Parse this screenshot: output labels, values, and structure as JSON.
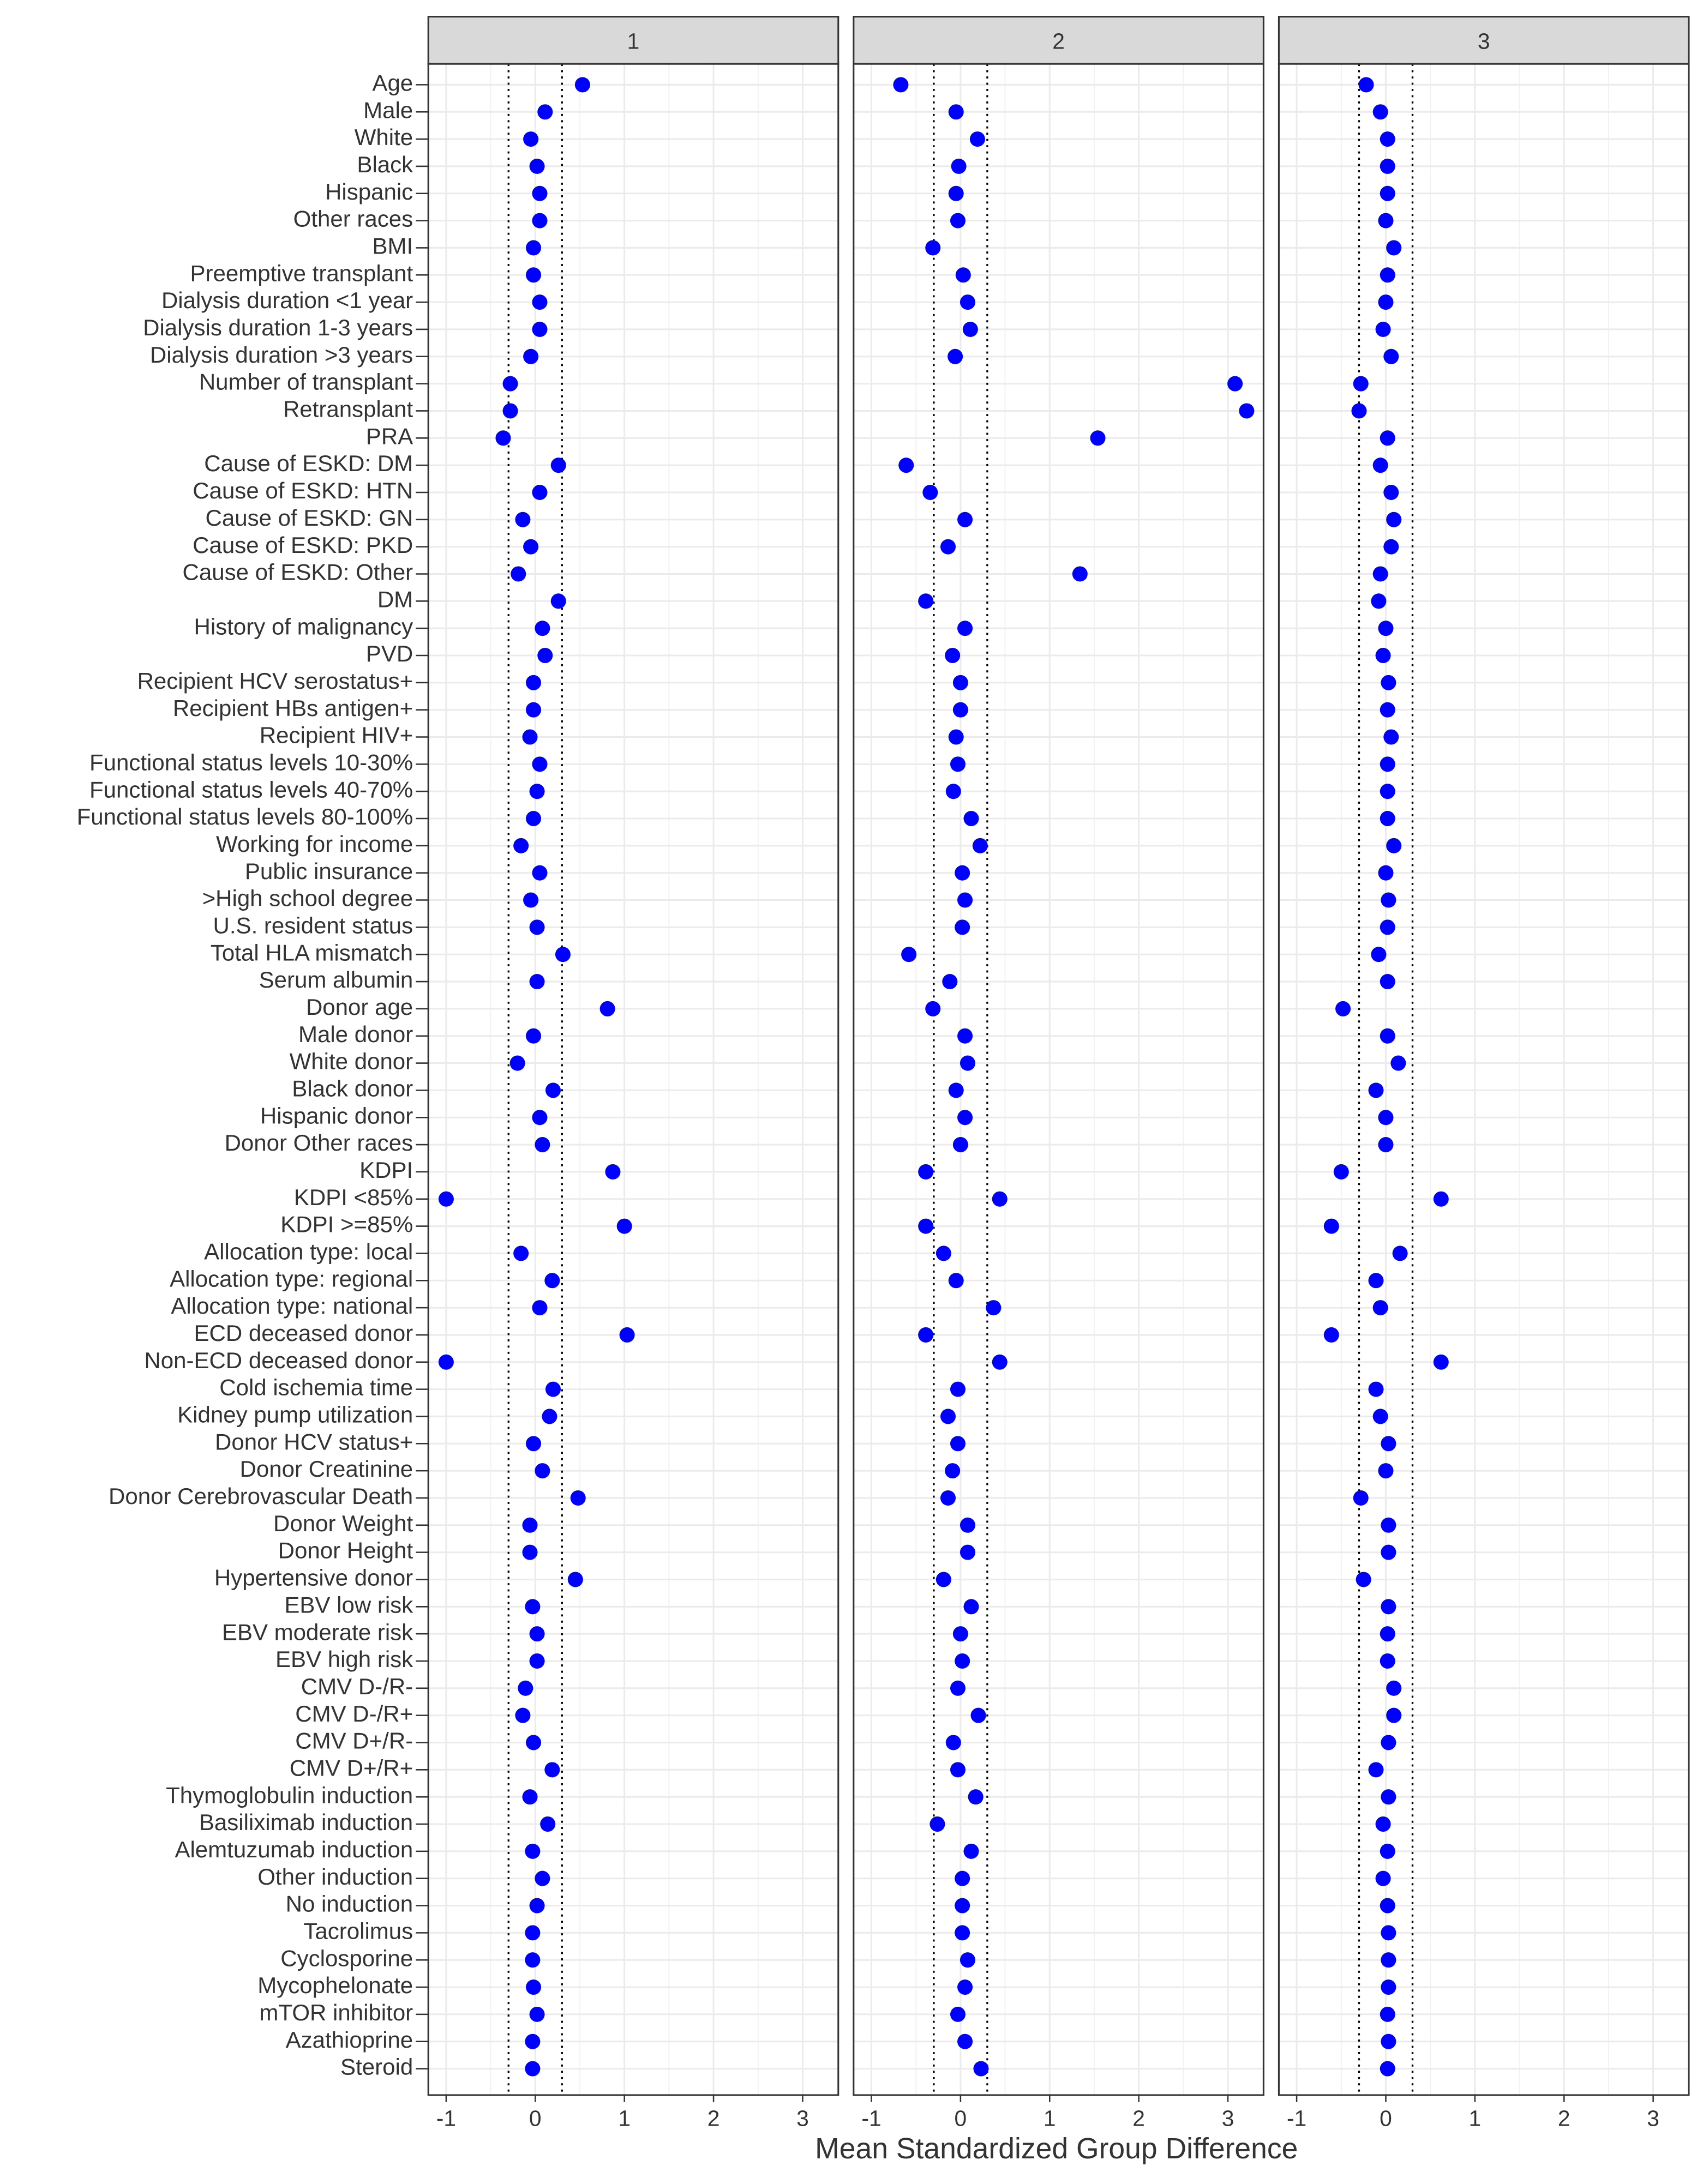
{
  "chart_data": {
    "type": "dot",
    "x_label": "Mean Standardized Group Difference",
    "categories": [
      "Age",
      "Male",
      "White",
      "Black",
      "Hispanic",
      "Other races",
      "BMI",
      "Preemptive transplant",
      "Dialysis duration <1 year",
      "Dialysis duration 1-3 years",
      "Dialysis duration >3 years",
      "Number of transplant",
      "Retransplant",
      "PRA",
      "Cause of ESKD: DM",
      "Cause of ESKD: HTN",
      "Cause of ESKD: GN",
      "Cause of ESKD: PKD",
      "Cause of ESKD: Other",
      "DM",
      "History of malignancy",
      "PVD",
      "Recipient HCV serostatus+",
      "Recipient HBs antigen+",
      "Recipient HIV+",
      "Functional status levels 10-30%",
      "Functional status levels 40-70%",
      "Functional status levels 80-100%",
      "Working for income",
      "Public insurance",
      ">High school degree",
      "U.S. resident status",
      "Total HLA mismatch",
      "Serum albumin",
      "Donor age",
      "Male donor",
      "White donor",
      "Black donor",
      "Hispanic donor",
      "Donor Other races",
      "KDPI",
      "KDPI <85%",
      "KDPI >=85%",
      "Allocation type: local",
      "Allocation type: regional",
      "Allocation type: national",
      "ECD deceased donor",
      "Non-ECD deceased donor",
      "Cold ischemia time",
      "Kidney pump utilization",
      "Donor HCV status+",
      "Donor Creatinine",
      "Donor Cerebrovascular Death",
      "Donor Weight",
      "Donor Height",
      "Hypertensive donor",
      "EBV low risk",
      "EBV moderate risk",
      "EBV high risk",
      "CMV D-/R-",
      "CMV D-/R+",
      "CMV D+/R-",
      "CMV D+/R+",
      "Thymoglobulin induction",
      "Basiliximab induction",
      "Alemtuzumab induction",
      "Other induction",
      "No induction",
      "Tacrolimus",
      "Cyclosporine",
      "Mycophelonate",
      "mTOR inhibitor",
      "Azathioprine",
      "Steroid"
    ],
    "series": [
      {
        "name": "1",
        "color": "#0000ff",
        "values": [
          0.53,
          0.11,
          -0.05,
          0.02,
          0.05,
          0.05,
          -0.02,
          -0.02,
          0.05,
          0.05,
          -0.05,
          -0.28,
          -0.28,
          -0.36,
          0.26,
          0.05,
          -0.14,
          -0.05,
          -0.19,
          0.26,
          0.08,
          0.11,
          -0.02,
          -0.02,
          -0.06,
          0.05,
          0.02,
          -0.02,
          -0.16,
          0.05,
          -0.05,
          0.02,
          0.31,
          0.02,
          0.81,
          -0.02,
          -0.2,
          0.2,
          0.05,
          0.08,
          0.87,
          -1.0,
          1.0,
          -0.16,
          0.19,
          0.05,
          1.03,
          -1.0,
          0.2,
          0.16,
          -0.02,
          0.08,
          0.48,
          -0.06,
          -0.06,
          0.45,
          -0.03,
          0.02,
          0.02,
          -0.11,
          -0.14,
          -0.02,
          0.19,
          -0.06,
          0.14,
          -0.03,
          0.08,
          0.02,
          -0.03,
          -0.03,
          -0.02,
          0.02,
          -0.03,
          -0.03
        ]
      },
      {
        "name": "2",
        "color": "#0000ff",
        "values": [
          -0.67,
          -0.05,
          0.19,
          -0.02,
          -0.05,
          -0.03,
          -0.31,
          0.03,
          0.08,
          0.11,
          -0.06,
          3.08,
          3.21,
          1.54,
          -0.61,
          -0.34,
          0.05,
          -0.14,
          1.34,
          -0.39,
          0.05,
          -0.09,
          0,
          0,
          -0.05,
          -0.03,
          -0.08,
          0.12,
          0.22,
          0.02,
          0.05,
          0.02,
          -0.58,
          -0.12,
          -0.31,
          0.05,
          0.08,
          -0.05,
          0.05,
          0,
          -0.39,
          0.44,
          -0.39,
          -0.19,
          -0.05,
          0.37,
          -0.39,
          0.44,
          -0.03,
          -0.14,
          -0.03,
          -0.09,
          -0.14,
          0.08,
          0.08,
          -0.19,
          0.12,
          0,
          0.02,
          -0.03,
          0.2,
          -0.08,
          -0.03,
          0.17,
          -0.26,
          0.12,
          0.02,
          0.02,
          0.02,
          0.08,
          0.05,
          -0.03,
          0.05,
          0.23
        ]
      },
      {
        "name": "3",
        "color": "#0000ff",
        "values": [
          -0.22,
          -0.06,
          0.02,
          0.02,
          0.02,
          0,
          0.09,
          0.02,
          0,
          -0.03,
          0.06,
          -0.28,
          -0.3,
          0.02,
          -0.06,
          0.06,
          0.09,
          0.06,
          -0.06,
          -0.08,
          0,
          -0.03,
          0.03,
          0.02,
          0.06,
          0.02,
          0.02,
          0.02,
          0.09,
          0,
          0.03,
          0.02,
          -0.08,
          0.02,
          -0.48,
          0.02,
          0.14,
          -0.11,
          0,
          0,
          -0.5,
          0.62,
          -0.61,
          0.16,
          -0.11,
          -0.06,
          -0.61,
          0.62,
          -0.11,
          -0.06,
          0.03,
          0,
          -0.28,
          0.03,
          0.03,
          -0.25,
          0.03,
          0.02,
          0.02,
          0.09,
          0.09,
          0.03,
          -0.11,
          0.03,
          -0.03,
          0.02,
          -0.03,
          0.02,
          0.03,
          0.03,
          0.03,
          0.02,
          0.03,
          0.02
        ]
      }
    ],
    "xlim": [
      -1.2,
      3.4
    ],
    "xticks": [
      -1,
      0,
      1,
      2,
      3
    ],
    "minor_xticks": [
      -0.5,
      0.5,
      1.5,
      2.5
    ],
    "ref_lines": [
      -0.3,
      0.3
    ],
    "grid": true
  }
}
